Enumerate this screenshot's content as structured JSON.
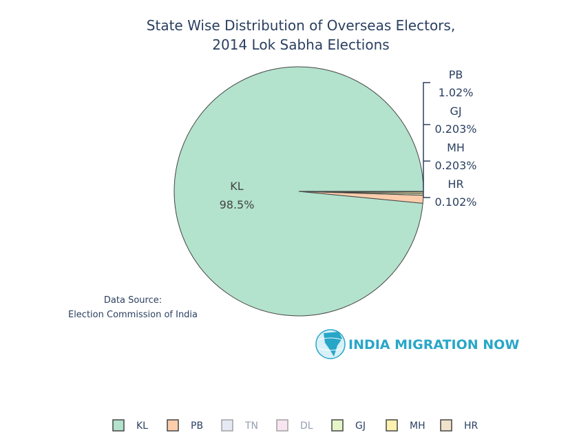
{
  "chart_data": {
    "type": "pie",
    "title": [
      "State Wise Distribution of Overseas Electors,",
      "2014 Lok Sabha Elections"
    ],
    "slices": [
      {
        "label": "KL",
        "percent": 98.5,
        "percent_text": "98.5%",
        "color": "#b3e2cd",
        "legend_opacity": 1
      },
      {
        "label": "PB",
        "percent": 1.02,
        "percent_text": "1.02%",
        "color": "#fdcdac",
        "legend_opacity": 1
      },
      {
        "label": "TN",
        "percent": 0,
        "percent_text": "",
        "color": "#cbd5e8",
        "legend_opacity": 0.5
      },
      {
        "label": "DL",
        "percent": 0,
        "percent_text": "",
        "color": "#f4cae4",
        "legend_opacity": 0.5
      },
      {
        "label": "GJ",
        "percent": 0.203,
        "percent_text": "0.203%",
        "color": "#e6f5c9",
        "legend_opacity": 1
      },
      {
        "label": "MH",
        "percent": 0.203,
        "percent_text": "0.203%",
        "color": "#fff2ae",
        "legend_opacity": 1
      },
      {
        "label": "HR",
        "percent": 0.102,
        "percent_text": "0.102%",
        "color": "#f1e2cc",
        "legend_opacity": 1
      }
    ],
    "legend_placement": "bottom",
    "annotation": [
      "Data Source:",
      "Election Commission of India"
    ]
  },
  "branding": {
    "logo_text": "INDIA MIGRATION NOW"
  }
}
